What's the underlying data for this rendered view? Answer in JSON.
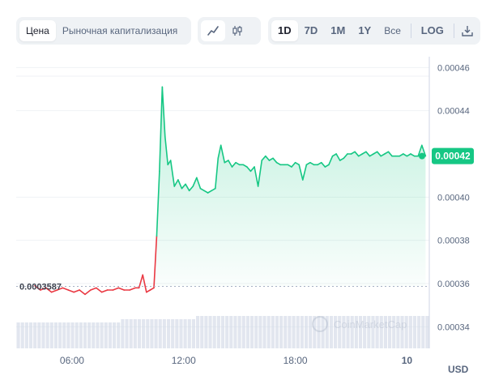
{
  "toolbar": {
    "metric_tabs": [
      "Цена",
      "Рыночная капитализация"
    ],
    "active_metric": "Цена",
    "chart_type_icons": [
      "line-chart-icon",
      "candlestick-icon"
    ],
    "active_chart_type": "line-chart-icon",
    "ranges": [
      "1D",
      "7D",
      "1M",
      "1Y",
      "Все"
    ],
    "active_range": "1D",
    "log_label": "LOG",
    "download_icon": "download-icon"
  },
  "colors": {
    "up": "#16c784",
    "down": "#ea3943",
    "grid": "#eff2f5",
    "volume": "#cfd6e4",
    "axis_text": "#58667e",
    "badge_bg": "#16c784",
    "ref_label": "#3e4350"
  },
  "chart_data": {
    "type": "line",
    "ylim": [
      0.00033,
      0.000465
    ],
    "xlim": [
      3.0,
      25.2
    ],
    "y_ticks": [
      "0.00046",
      "0.00044",
      "0.00040",
      "0.00038",
      "0.00036",
      "0.00034"
    ],
    "y_tick_values": [
      0.00046,
      0.00044,
      0.0004,
      0.00038,
      0.00036,
      0.00034
    ],
    "x_ticks": [
      "06:00",
      "12:00",
      "18:00",
      "10"
    ],
    "x_tick_values": [
      6,
      12,
      18,
      24
    ],
    "reference_price": 0.0003587,
    "reference_label": "0.0003587",
    "current_price_label": "0.00042",
    "current_price": 0.000419,
    "unit_label": "USD",
    "watermark": "CoinMarketCap",
    "series": [
      {
        "x": [
          4.0,
          4.3,
          4.6,
          4.9,
          5.2,
          5.5,
          5.8,
          6.1,
          6.4,
          6.7,
          7.0,
          7.3,
          7.6,
          7.9,
          8.2,
          8.5,
          8.8,
          9.1,
          9.4,
          9.6,
          9.8,
          10.0,
          10.2,
          10.4,
          10.55,
          10.7,
          10.85,
          11.0,
          11.15,
          11.3,
          11.5,
          11.7,
          11.9,
          12.1,
          12.3,
          12.5,
          12.7,
          12.9,
          13.1,
          13.3,
          13.5,
          13.7,
          13.85,
          14.0,
          14.2,
          14.4,
          14.6,
          14.8,
          15.0,
          15.2,
          15.4,
          15.6,
          15.8,
          16.0,
          16.2,
          16.4,
          16.6,
          16.8,
          17.0,
          17.2,
          17.4,
          17.6,
          17.8,
          18.0,
          18.2,
          18.4,
          18.6,
          18.8,
          19.0,
          19.2,
          19.4,
          19.6,
          19.8,
          20.0,
          20.2,
          20.4,
          20.6,
          20.8,
          21.0,
          21.2,
          21.4,
          21.6,
          21.8,
          22.0,
          22.2,
          22.4,
          22.6,
          22.8,
          23.0,
          23.2,
          23.4,
          23.6,
          23.8,
          24.0,
          24.2,
          24.4,
          24.6,
          24.8,
          25.0
        ],
        "y": [
          0.000359,
          0.000357,
          0.000358,
          0.000356,
          0.000357,
          0.000358,
          0.000357,
          0.000356,
          0.000357,
          0.000355,
          0.000357,
          0.000358,
          0.000356,
          0.000357,
          0.000357,
          0.000358,
          0.000357,
          0.000357,
          0.000358,
          0.000358,
          0.000364,
          0.000356,
          0.000357,
          0.000358,
          0.000382,
          0.000412,
          0.000451,
          0.000428,
          0.000415,
          0.000417,
          0.000405,
          0.000408,
          0.000404,
          0.000406,
          0.000403,
          0.000405,
          0.000409,
          0.000404,
          0.000403,
          0.000402,
          0.000403,
          0.000404,
          0.000418,
          0.000424,
          0.000416,
          0.000417,
          0.000414,
          0.000416,
          0.000415,
          0.000415,
          0.000414,
          0.000412,
          0.000414,
          0.000405,
          0.000417,
          0.000419,
          0.000417,
          0.000418,
          0.000416,
          0.000415,
          0.000415,
          0.000415,
          0.000414,
          0.000416,
          0.000415,
          0.000408,
          0.000415,
          0.000416,
          0.000415,
          0.000415,
          0.000416,
          0.000414,
          0.000415,
          0.000419,
          0.00042,
          0.000417,
          0.000418,
          0.00042,
          0.00042,
          0.000421,
          0.000419,
          0.00042,
          0.000421,
          0.000419,
          0.00042,
          0.000421,
          0.000419,
          0.00042,
          0.000421,
          0.000419,
          0.000419,
          0.000419,
          0.00042,
          0.000419,
          0.00042,
          0.000419,
          0.000419,
          0.000424,
          0.000419
        ]
      }
    ],
    "volume": [
      8,
      8,
      8,
      8,
      8,
      8,
      8,
      8,
      8,
      8,
      8,
      8,
      8,
      8,
      8,
      8,
      8,
      8,
      8,
      8,
      8,
      8,
      8,
      8,
      8,
      9,
      9,
      9,
      9,
      9,
      9,
      9,
      9,
      9,
      9,
      9,
      9,
      9,
      9,
      9,
      9,
      9,
      9,
      10,
      10,
      10,
      10,
      10,
      10,
      10,
      10,
      10,
      10,
      10,
      10,
      10,
      10,
      10,
      10,
      10,
      10,
      10,
      10,
      10,
      10,
      10,
      10,
      10,
      10,
      10,
      10,
      10,
      10,
      10,
      10,
      10,
      10,
      10,
      10,
      10,
      10,
      10,
      10,
      10,
      10,
      10,
      10,
      10,
      10,
      10,
      10,
      10,
      10,
      10,
      10,
      10,
      10,
      10,
      10
    ]
  }
}
